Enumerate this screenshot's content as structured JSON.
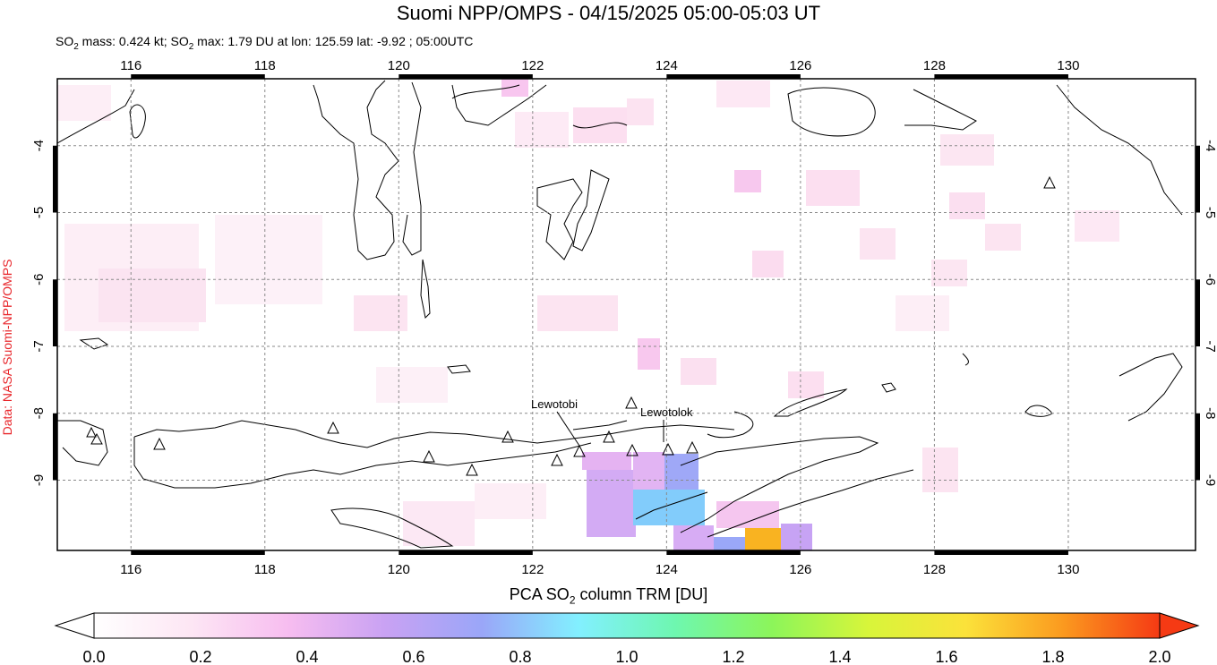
{
  "title": "Suomi NPP/OMPS - 04/15/2025 05:00-05:03 UT",
  "subtitle": {
    "prefix": "SO",
    "sub1": "2",
    "mid1": " mass: 0.424 kt; SO",
    "sub2": "2",
    "mid2": " max: 1.79 DU at lon: 125.59 lat: -9.92 ; 05:00UTC"
  },
  "credit": "Data: NASA Suomi-NPP/OMPS",
  "colorbar": {
    "label_prefix": "PCA SO",
    "label_sub": "2",
    "label_suffix": " column TRM [DU]",
    "ticks": [
      "0.0",
      "0.2",
      "0.4",
      "0.6",
      "0.8",
      "1.0",
      "1.2",
      "1.4",
      "1.6",
      "1.8",
      "2.0"
    ],
    "colors": [
      "#ffffff",
      "#fde6f4",
      "#f7bdf0",
      "#c9a2f3",
      "#9aa6f8",
      "#82f0ff",
      "#6ef7b0",
      "#8cf55a",
      "#d8f53a",
      "#fbe23a",
      "#fb9a1f",
      "#f53a14"
    ]
  },
  "map": {
    "lon_ticks": [
      "116",
      "118",
      "120",
      "122",
      "124",
      "126",
      "128",
      "130"
    ],
    "lat_ticks": [
      "-4",
      "-5",
      "-6",
      "-7",
      "-8",
      "-9"
    ],
    "lon_range": [
      114.9,
      131.9
    ],
    "lat_range": [
      -10.05,
      -3.0
    ],
    "volcanoes": [
      {
        "name": "Lewotobi",
        "lon": 122.78,
        "lat": -8.54
      },
      {
        "name": "Lewotolok",
        "lon": 123.51,
        "lat": -8.27
      }
    ]
  }
}
